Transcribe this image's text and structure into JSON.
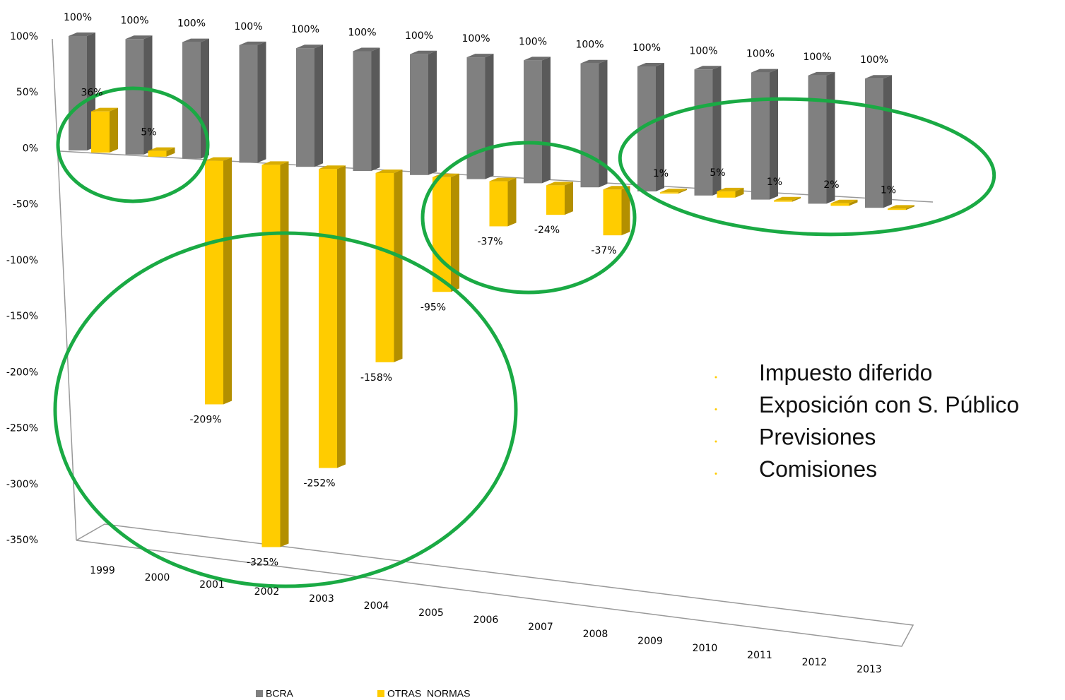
{
  "chart_data": {
    "type": "bar3d",
    "categories": [
      "1999",
      "2000",
      "2001",
      "2002",
      "2003",
      "2004",
      "2005",
      "2006",
      "2007",
      "2008",
      "2009",
      "2010",
      "2011",
      "2012",
      "2013"
    ],
    "series": [
      {
        "name": "BCRA",
        "color": "#808080",
        "values": [
          100,
          100,
          100,
          100,
          100,
          100,
          100,
          100,
          100,
          100,
          100,
          100,
          100,
          100,
          100
        ],
        "value_labels": [
          "100%",
          "100%",
          "100%",
          "100%",
          "100%",
          "100%",
          "100%",
          "100%",
          "100%",
          "100%",
          "100%",
          "100%",
          "100%",
          "100%",
          "100%"
        ]
      },
      {
        "name": "OTRAS  NORMAS",
        "color": "#ffcc00",
        "values": [
          36,
          5,
          -209,
          -325,
          -252,
          -158,
          -95,
          -37,
          -24,
          -37,
          1,
          5,
          1,
          2,
          1
        ],
        "value_labels": [
          "36%",
          "5%",
          "-209%",
          "-325%",
          "-252%",
          "-158%",
          "-95%",
          "-37%",
          "-24%",
          "-37%",
          "1%",
          "5%",
          "1%",
          "2%",
          "1%"
        ]
      }
    ],
    "ylim": [
      -350,
      100
    ],
    "yticks": [
      {
        "value": 100,
        "label": "100%"
      },
      {
        "value": 50,
        "label": "50%"
      },
      {
        "value": 0,
        "label": "0%"
      },
      {
        "value": -50,
        "label": "-50%"
      },
      {
        "value": -100,
        "label": "-100%"
      },
      {
        "value": -150,
        "label": "-150%"
      },
      {
        "value": -200,
        "label": "-200%"
      },
      {
        "value": -250,
        "label": "-250%"
      },
      {
        "value": -300,
        "label": "-300%"
      },
      {
        "value": -350,
        "label": "-350%"
      }
    ],
    "annotations": [
      "Impuesto diferido",
      "Exposición con S. Público",
      "Previsiones",
      "Comisiones"
    ]
  }
}
